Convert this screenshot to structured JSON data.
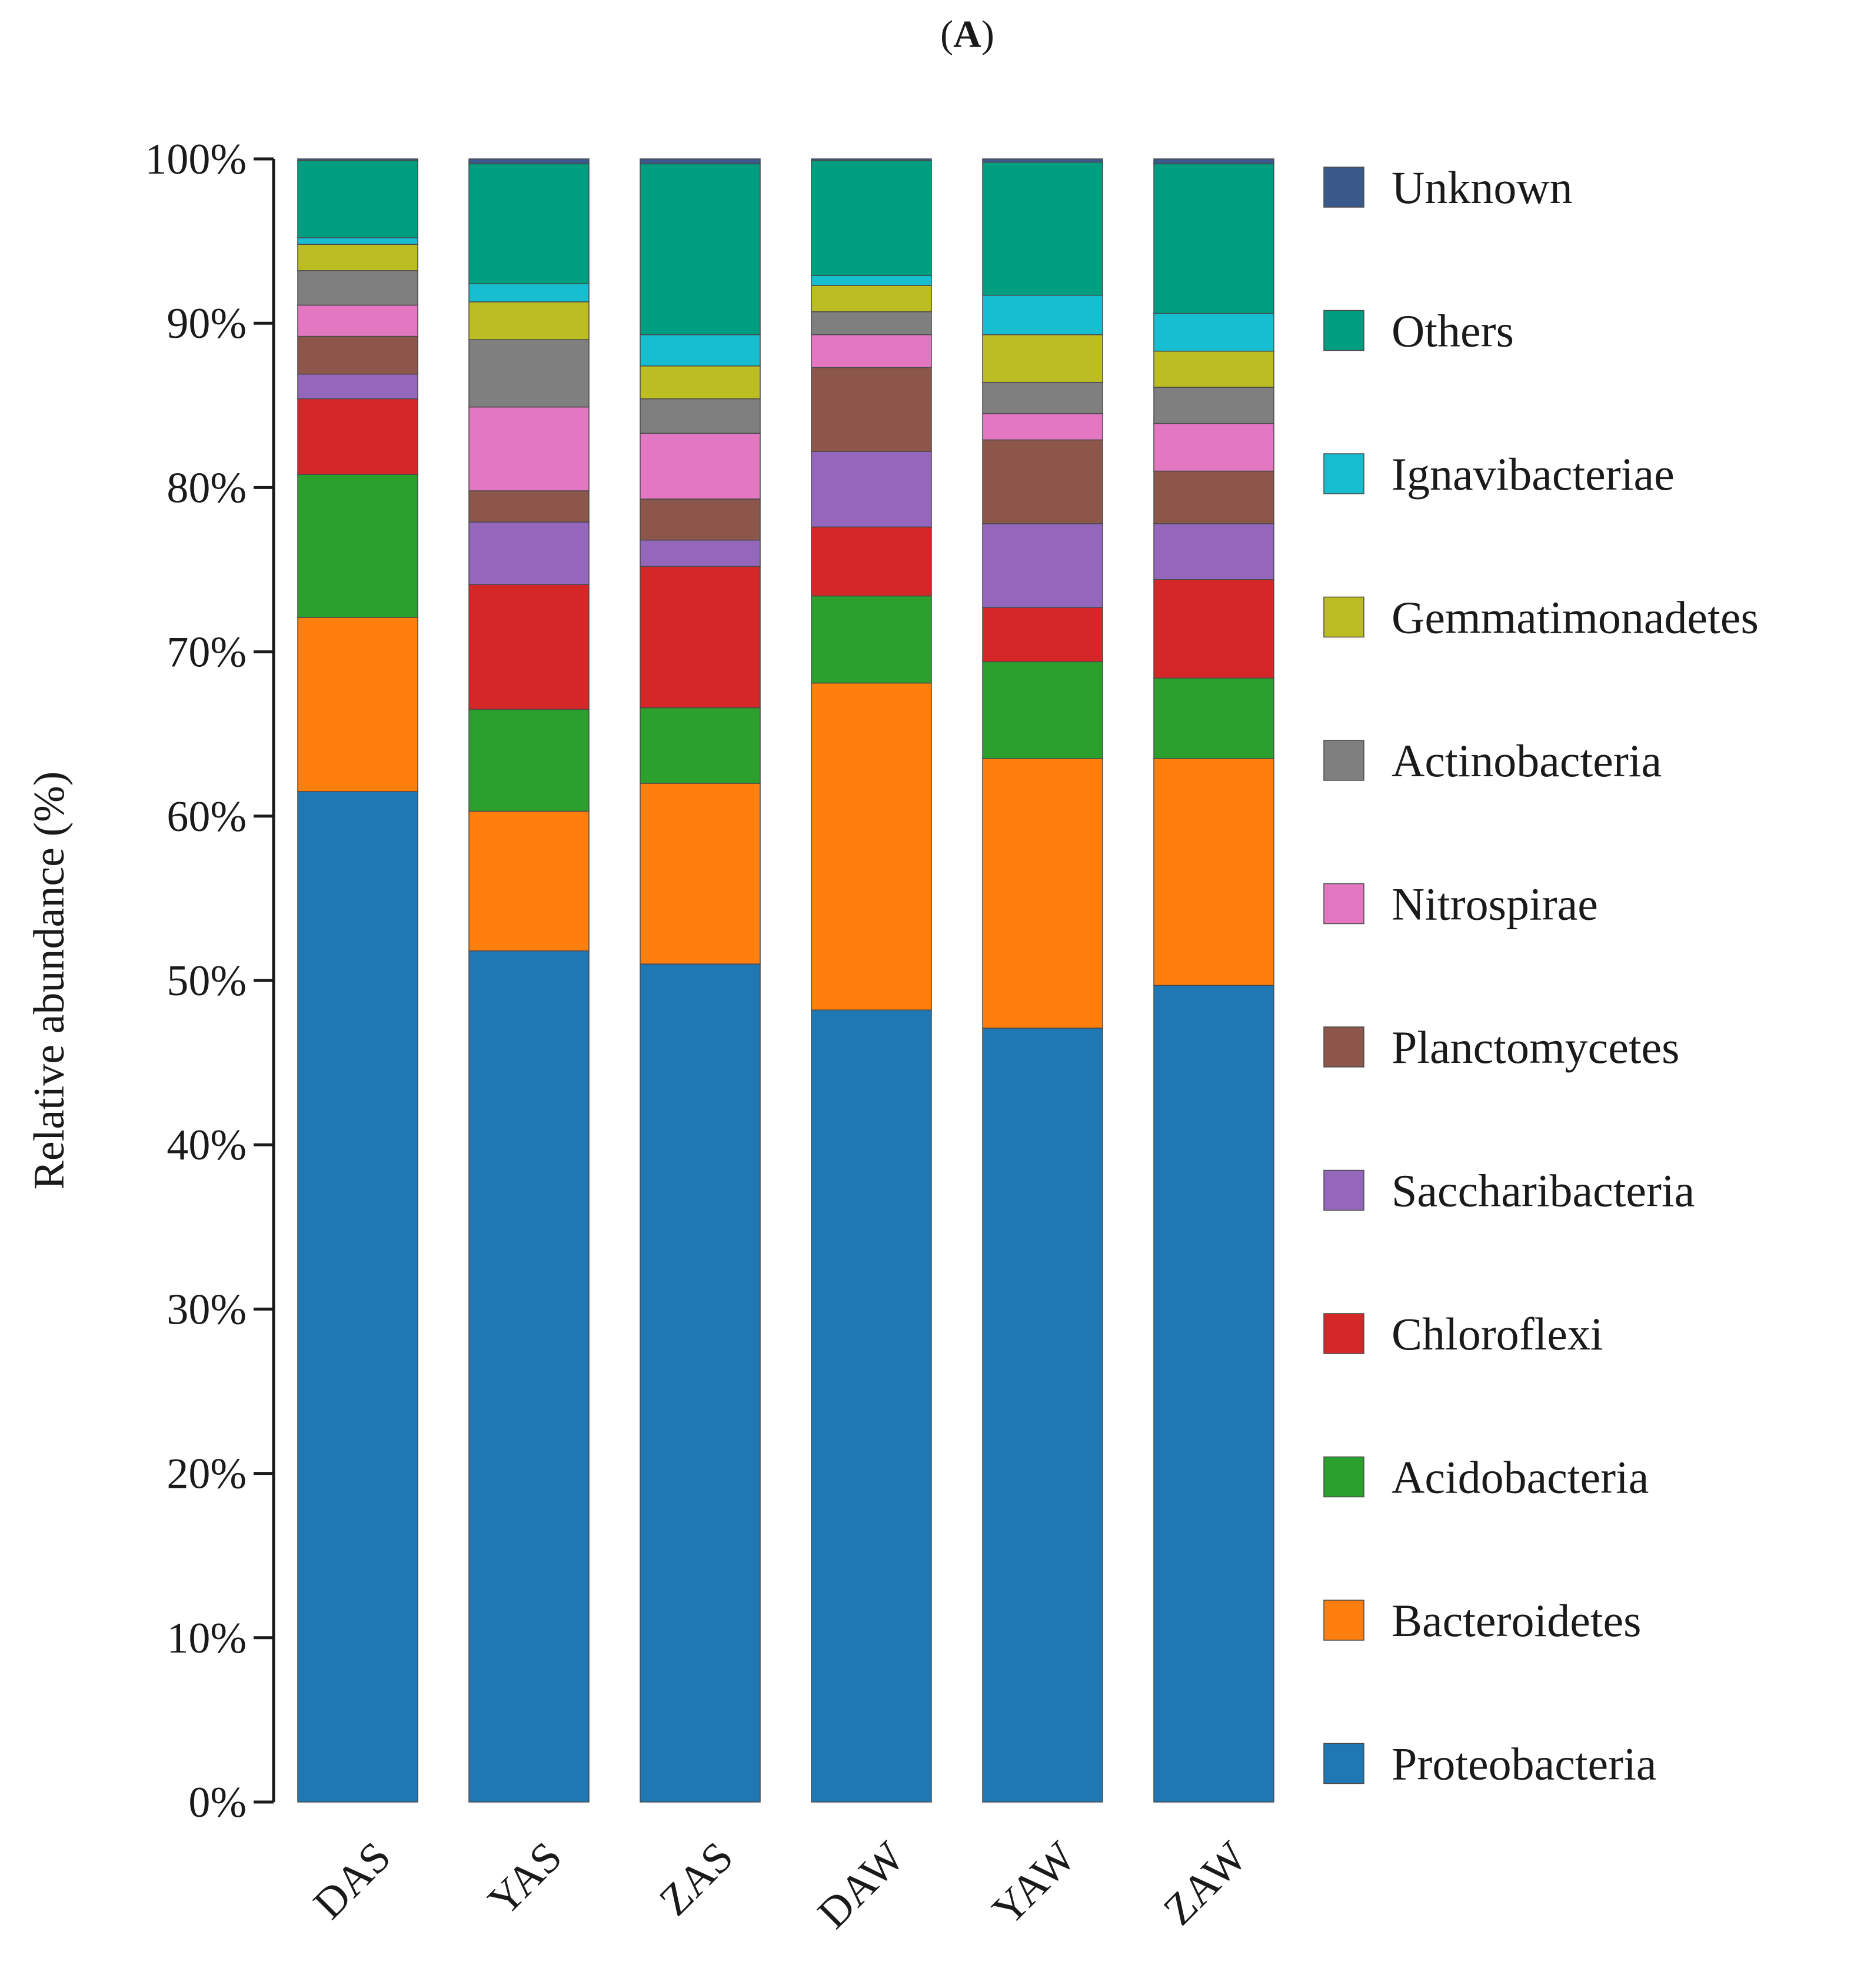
{
  "panel_label": {
    "open": "(",
    "letter": "A",
    "close": ")"
  },
  "chart_data": {
    "type": "bar",
    "stacked": true,
    "title": "",
    "xlabel": "",
    "ylabel": "Relative abundance (%)",
    "ylim": [
      0,
      100
    ],
    "yticks": [
      "0%",
      "10%",
      "20%",
      "30%",
      "40%",
      "50%",
      "60%",
      "70%",
      "80%",
      "90%",
      "100%"
    ],
    "legend_position": "right",
    "categories": [
      "DAS",
      "YAS",
      "ZAS",
      "DAW",
      "YAW",
      "ZAW"
    ],
    "series": [
      {
        "name": "Proteobacteria",
        "color": "#1f77b4",
        "values": [
          61.5,
          51.8,
          51.0,
          48.2,
          47.1,
          49.7
        ]
      },
      {
        "name": "Bacteroidetes",
        "color": "#ff7f0e",
        "values": [
          10.6,
          8.5,
          11.0,
          19.9,
          16.4,
          13.8
        ]
      },
      {
        "name": "Acidobacteria",
        "color": "#2ca02c",
        "values": [
          8.7,
          6.2,
          4.6,
          5.3,
          5.9,
          4.9
        ]
      },
      {
        "name": "Chloroflexi",
        "color": "#d62728",
        "values": [
          4.6,
          7.6,
          8.6,
          4.2,
          3.3,
          6.0
        ]
      },
      {
        "name": "Saccharibacteria",
        "color": "#9467bd",
        "values": [
          1.5,
          3.8,
          1.6,
          4.6,
          5.1,
          3.4
        ]
      },
      {
        "name": "Planctomycetes",
        "color": "#8c564b",
        "values": [
          2.3,
          1.9,
          2.5,
          5.1,
          5.1,
          3.2
        ]
      },
      {
        "name": "Nitrospirae",
        "color": "#e377c2",
        "values": [
          1.9,
          5.1,
          4.0,
          2.0,
          1.6,
          2.9
        ]
      },
      {
        "name": "Actinobacteria",
        "color": "#7f7f7f",
        "values": [
          2.1,
          4.1,
          2.1,
          1.4,
          1.9,
          2.2
        ]
      },
      {
        "name": "Gemmatimonadetes",
        "color": "#bcbd22",
        "values": [
          1.6,
          2.3,
          2.0,
          1.6,
          2.9,
          2.2
        ]
      },
      {
        "name": "Ignavibacteriae",
        "color": "#17becf",
        "values": [
          0.4,
          1.1,
          1.9,
          0.6,
          2.4,
          2.3
        ]
      },
      {
        "name": "Others",
        "color": "#009e80",
        "values": [
          4.7,
          7.3,
          10.4,
          7.0,
          8.1,
          9.1
        ]
      },
      {
        "name": "Unknown",
        "color": "#3a5a8c",
        "values": [
          0.1,
          0.3,
          0.3,
          0.1,
          0.2,
          0.3
        ]
      }
    ]
  }
}
